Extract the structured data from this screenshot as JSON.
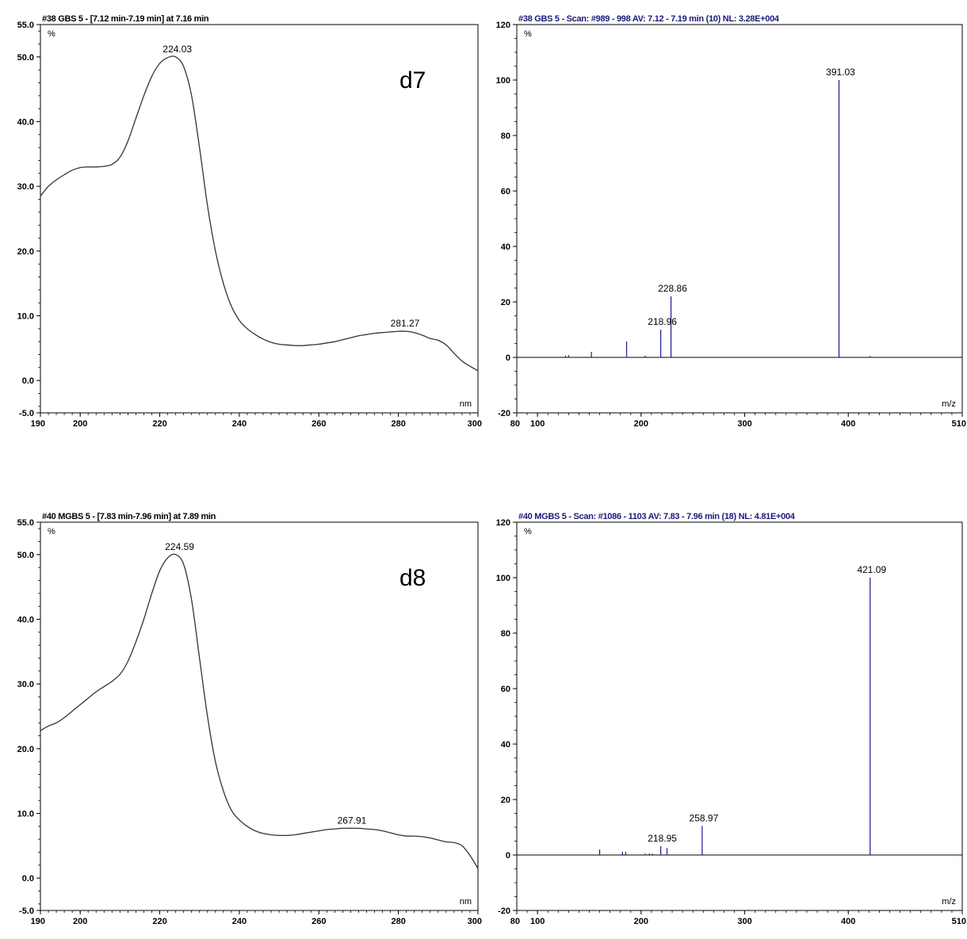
{
  "chart_data": [
    {
      "type": "line",
      "title": "#38 GBS 5 - [7.12 min-7.19 min] at 7.16 min",
      "ylabel": "%",
      "xlabel": "nm",
      "panel_label": "d7",
      "xlim": [
        190,
        300
      ],
      "ylim": [
        -5,
        55
      ],
      "x_ticks": [
        "190",
        "200",
        "220",
        "240",
        "260",
        "280",
        "300"
      ],
      "y_ticks": [
        "55.0",
        "50.0",
        "40.0",
        "30.0",
        "20.0",
        "10.0",
        "0.0",
        "-5.0"
      ],
      "x": [
        190,
        192,
        194,
        196,
        198,
        200,
        202,
        204,
        206,
        208,
        210,
        212,
        214,
        216,
        218,
        220,
        222,
        224,
        226,
        228,
        230,
        232,
        234,
        236,
        238,
        240,
        242,
        244,
        246,
        248,
        250,
        252,
        254,
        256,
        258,
        260,
        262,
        264,
        266,
        268,
        270,
        272,
        274,
        276,
        278,
        280,
        282,
        284,
        286,
        288,
        290,
        292,
        294,
        296,
        298,
        300
      ],
      "y": [
        28.5,
        30.0,
        31.0,
        31.8,
        32.5,
        32.9,
        33.0,
        33.0,
        33.1,
        33.4,
        34.5,
        37.0,
        40.5,
        44.0,
        47.0,
        49.0,
        49.9,
        50.0,
        48.5,
        44.0,
        36.0,
        27.0,
        20.0,
        15.0,
        11.5,
        9.3,
        8.0,
        7.1,
        6.4,
        5.9,
        5.6,
        5.5,
        5.4,
        5.4,
        5.5,
        5.6,
        5.8,
        6.0,
        6.3,
        6.6,
        6.9,
        7.1,
        7.3,
        7.4,
        7.5,
        7.6,
        7.6,
        7.4,
        7.0,
        6.5,
        6.2,
        5.5,
        4.2,
        3.0,
        2.2,
        1.5
      ],
      "annotations": [
        {
          "x": 224.03,
          "y": 50.0,
          "label": "224.03"
        },
        {
          "x": 281.27,
          "y": 7.6,
          "label": "281.27"
        }
      ]
    },
    {
      "type": "bar",
      "title": "#38 GBS 5 - Scan: #989 - 998  AV: 7.12 - 7.19 min (10) NL: 3.28E+004",
      "ylabel": "%",
      "xlabel": "m/z",
      "xlim": [
        80,
        510
      ],
      "ylim": [
        -20,
        120
      ],
      "x_ticks": [
        "80",
        "100",
        "200",
        "300",
        "400",
        "510"
      ],
      "y_ticks": [
        "120",
        "100",
        "80",
        "60",
        "40",
        "20",
        "0",
        "-20"
      ],
      "x": [
        127,
        130,
        152,
        186,
        204,
        218.96,
        228.86,
        391.03,
        421
      ],
      "y": [
        0.6,
        0.8,
        2.0,
        5.8,
        0.6,
        10.0,
        22.0,
        100.0,
        0.5
      ],
      "annotations": [
        {
          "x": 228.86,
          "y": 22.0,
          "label": "228.86"
        },
        {
          "x": 218.96,
          "y": 10.0,
          "label": "218.96"
        },
        {
          "x": 391.03,
          "y": 100.0,
          "label": "391.03"
        }
      ]
    },
    {
      "type": "line",
      "title": "#40 MGBS 5 - [7.83 min-7.96 min] at 7.89 min",
      "ylabel": "%",
      "xlabel": "nm",
      "panel_label": "d8",
      "xlim": [
        190,
        300
      ],
      "ylim": [
        -5,
        55
      ],
      "x_ticks": [
        "190",
        "200",
        "220",
        "240",
        "260",
        "280",
        "300"
      ],
      "y_ticks": [
        "55.0",
        "50.0",
        "40.0",
        "30.0",
        "20.0",
        "10.0",
        "0.0",
        "-5.0"
      ],
      "x": [
        190,
        192,
        194,
        196,
        198,
        200,
        202,
        204,
        206,
        208,
        210,
        212,
        214,
        216,
        218,
        220,
        222,
        224,
        226,
        228,
        230,
        232,
        234,
        236,
        238,
        240,
        242,
        244,
        246,
        248,
        250,
        252,
        254,
        256,
        258,
        260,
        262,
        264,
        266,
        268,
        270,
        272,
        274,
        276,
        278,
        280,
        282,
        284,
        286,
        288,
        290,
        292,
        294,
        296,
        298,
        300
      ],
      "y": [
        22.8,
        23.5,
        24.0,
        24.8,
        25.8,
        26.8,
        27.8,
        28.8,
        29.6,
        30.4,
        31.5,
        33.5,
        36.5,
        40.0,
        44.0,
        47.5,
        49.5,
        50.0,
        48.5,
        43.0,
        34.0,
        25.0,
        18.0,
        13.5,
        10.5,
        9.0,
        8.0,
        7.3,
        6.9,
        6.7,
        6.6,
        6.6,
        6.7,
        6.9,
        7.1,
        7.3,
        7.5,
        7.6,
        7.7,
        7.7,
        7.7,
        7.6,
        7.5,
        7.3,
        7.0,
        6.7,
        6.5,
        6.5,
        6.4,
        6.2,
        5.9,
        5.6,
        5.5,
        5.0,
        3.5,
        1.5
      ],
      "annotations": [
        {
          "x": 224.59,
          "y": 50.0,
          "label": "224.59"
        },
        {
          "x": 267.91,
          "y": 7.7,
          "label": "267.91"
        }
      ]
    },
    {
      "type": "bar",
      "title": "#40 MGBS 5 - Scan: #1086 - 1103  AV: 7.83 - 7.96 min (18) NL: 4.81E+004",
      "ylabel": "%",
      "xlabel": "m/z",
      "xlim": [
        80,
        510
      ],
      "ylim": [
        -20,
        120
      ],
      "x_ticks": [
        "80",
        "100",
        "200",
        "300",
        "400",
        "510"
      ],
      "y_ticks": [
        "120",
        "100",
        "80",
        "60",
        "40",
        "20",
        "0",
        "-20"
      ],
      "x": [
        160,
        182,
        185,
        204,
        208,
        211,
        218.95,
        225,
        258.97,
        421.09
      ],
      "y": [
        2.0,
        1.2,
        1.2,
        0.5,
        0.6,
        0.5,
        3.2,
        2.5,
        10.5,
        100.0
      ],
      "annotations": [
        {
          "x": 258.97,
          "y": 10.5,
          "label": "258.97"
        },
        {
          "x": 218.95,
          "y": 3.2,
          "label": "218.95"
        },
        {
          "x": 421.09,
          "y": 100.0,
          "label": "421.09"
        }
      ]
    }
  ]
}
